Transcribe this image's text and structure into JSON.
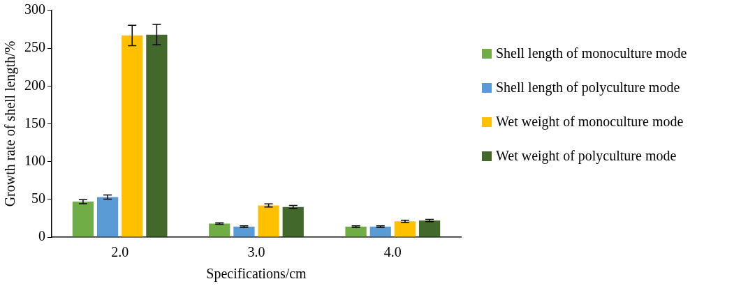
{
  "chart_data": {
    "type": "bar",
    "xlabel": "Specifications/cm",
    "ylabel": "Growth rate of shell length/%",
    "categories": [
      "2.0",
      "3.0",
      "4.0"
    ],
    "series": [
      {
        "name": "Shell length of monoculture mode",
        "color": "#70ad47",
        "values": [
          47,
          18,
          14
        ],
        "errors": [
          2.6,
          1,
          1
        ]
      },
      {
        "name": "Shell length of polyculture mode",
        "color": "#5b9bd5",
        "values": [
          53,
          14,
          14
        ],
        "errors": [
          2.8,
          1,
          1
        ]
      },
      {
        "name": "Wet weight of monoculture mode",
        "color": "#ffc000",
        "values": [
          267,
          42,
          21
        ],
        "errors": [
          13.5,
          2,
          1.5
        ]
      },
      {
        "name": "Wet weight of polyculture mode",
        "color": "#43682b",
        "values": [
          268,
          40,
          22
        ],
        "errors": [
          13.5,
          2,
          1.5
        ]
      }
    ],
    "ylim": [
      0,
      300
    ],
    "yticks": [
      0,
      50,
      100,
      150,
      200,
      250,
      300
    ],
    "grid": false,
    "legend": "right"
  }
}
